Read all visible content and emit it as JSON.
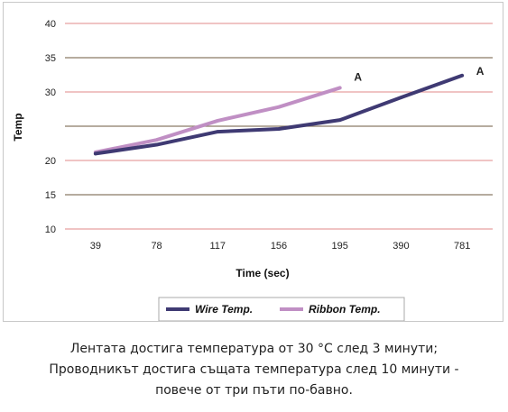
{
  "chart_data": {
    "type": "line",
    "categories": [
      "39",
      "78",
      "117",
      "156",
      "195",
      "390",
      "781"
    ],
    "series": [
      {
        "name": "Wire Temp.",
        "color": "#3f3a73",
        "values": [
          21,
          22.3,
          24.2,
          24.6,
          25.9,
          29.2,
          32.4
        ]
      },
      {
        "name": "Ribbon Temp.",
        "color": "#c08fc4",
        "values": [
          21.2,
          23,
          25.8,
          27.8,
          30.6,
          null,
          null
        ]
      }
    ],
    "annotations": [
      {
        "text": "A",
        "category": "195",
        "y": 32.2
      },
      {
        "text": "A",
        "category": "781",
        "y": 33
      }
    ],
    "title": "",
    "xlabel": "Time (sec)",
    "ylabel": "Temp",
    "y_ticks": [
      {
        "value": 10,
        "label": "10"
      },
      {
        "value": 15,
        "label": "15"
      },
      {
        "value": 20,
        "label": "20"
      },
      {
        "value": 25,
        "label": ""
      },
      {
        "value": 30,
        "label": "30"
      },
      {
        "value": 35,
        "label": "35"
      },
      {
        "value": 40,
        "label": "40"
      }
    ],
    "ylim": [
      10,
      40
    ],
    "grid": true,
    "gridline_colors": [
      "#e8a0a0",
      "#8a7a66"
    ],
    "legend_position": "bottom"
  },
  "caption": [
    "Лентата достига температура от 30 °С след 3 минути;",
    "Проводникът достига същата температура след 10 минути -",
    "повече от три пъти по-бавно."
  ]
}
